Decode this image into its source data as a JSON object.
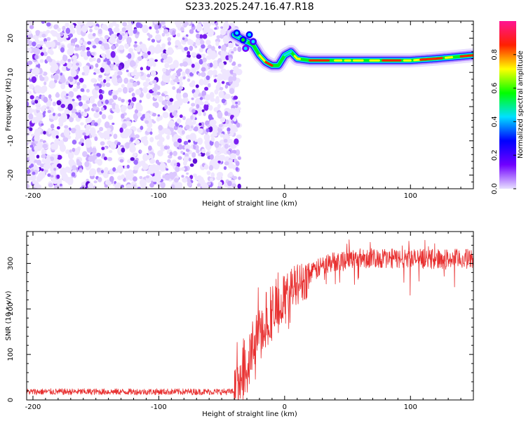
{
  "title": "S233.2025.247.16.47.R18",
  "chart_data": [
    {
      "type": "heatmap",
      "xlabel": "Height of straight line (km)",
      "ylabel": "Frequency (Hz)",
      "xlim": [
        -205,
        150
      ],
      "ylim": [
        -24,
        25
      ],
      "xticks": [
        -200,
        -100,
        0,
        100
      ],
      "yticks": [
        -20,
        -10,
        0,
        10,
        20
      ],
      "noise_region_x": [
        -205,
        -38
      ],
      "ridge": {
        "x": [
          -40,
          -35,
          -30,
          -25,
          -20,
          -15,
          -10,
          -5,
          0,
          5,
          10,
          20,
          40,
          60,
          80,
          100,
          120,
          150
        ],
        "freq": [
          21,
          20,
          19,
          18,
          15,
          13,
          12,
          12,
          15,
          16,
          14,
          13.5,
          13.5,
          13.5,
          13.5,
          13.5,
          14,
          15
        ]
      },
      "colorbar": {
        "label": "Normalized spectral amplitude",
        "range": [
          0,
          1
        ],
        "ticks": [
          "0.0",
          "0.2",
          "0.4",
          "0.6",
          "0.8"
        ],
        "colors": [
          "#e8e0ff",
          "#7000ff",
          "#0000ff",
          "#00e0ff",
          "#00ff00",
          "#ffff00",
          "#ff2000",
          "#ff1493"
        ]
      }
    },
    {
      "type": "line",
      "xlabel": "Height of straight line (km)",
      "ylabel": "SNR (10 * v/v)",
      "xlim": [
        -205,
        150
      ],
      "ylim": [
        0,
        370
      ],
      "xticks": [
        -200,
        -100,
        0,
        100
      ],
      "yticks": [
        0,
        100,
        200,
        300
      ],
      "color": "#e83030",
      "trend": {
        "x": [
          -205,
          -40,
          -35,
          -30,
          -25,
          -20,
          -15,
          -10,
          -5,
          0,
          5,
          10,
          15,
          20,
          25,
          30,
          40,
          50,
          60,
          100,
          150
        ],
        "snr": [
          18,
          18,
          25,
          65,
          120,
          150,
          165,
          185,
          200,
          225,
          250,
          255,
          260,
          275,
          285,
          295,
          305,
          310,
          312,
          310,
          310
        ]
      }
    }
  ]
}
